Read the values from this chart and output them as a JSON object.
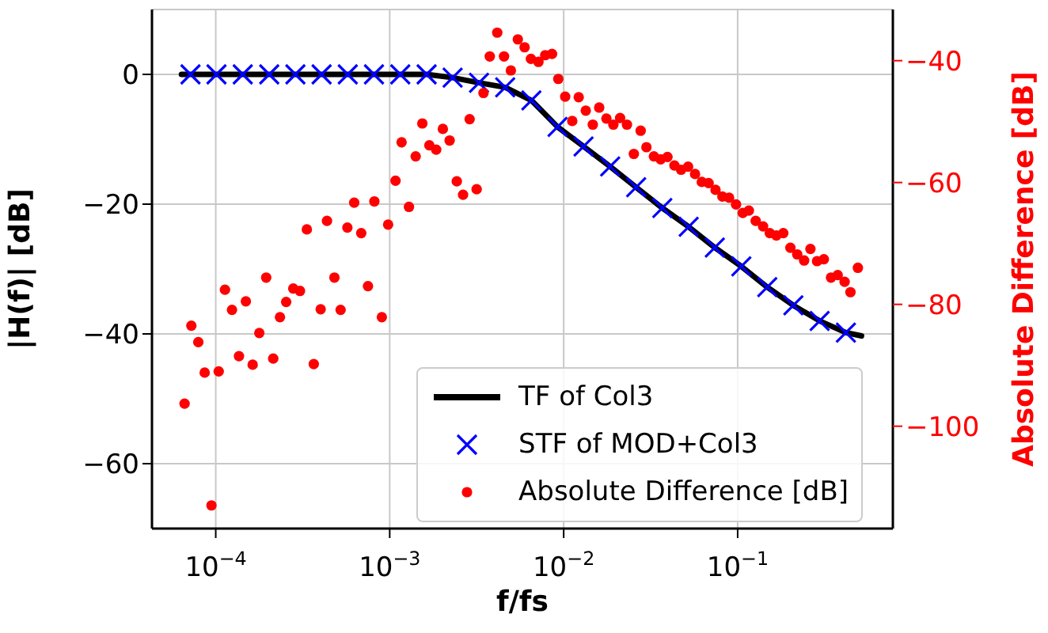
{
  "chart_data": {
    "type": "line",
    "xlabel": "f/fs",
    "ylabel": "|H(f)| [dB]",
    "y2label": "Absolute Difference [dB]",
    "log": "x",
    "grid": true,
    "legend": "bottom right",
    "xlim": [
      4.3e-05,
      0.78
    ],
    "xticks": [
      {
        "value": 0.0001,
        "label": "10$^{−4}$"
      },
      {
        "value": 0.001,
        "label": "10$^{−3}$"
      },
      {
        "value": 0.01,
        "label": "10$^{−2}$"
      },
      {
        "value": 0.1,
        "label": "10$^{−1}$"
      }
    ],
    "ylim": [
      -70,
      10
    ],
    "yticks": [
      -60,
      -40,
      -20,
      0
    ],
    "y2lim": [
      -116.8,
      -31.6
    ],
    "y2ticks": [
      -100,
      -80,
      -60,
      -40
    ],
    "series": [
      {
        "name": "TF of Col3",
        "color": "#000000",
        "marker": "none",
        "line_style": "solid",
        "x": [
          6.35e-05,
          7.16e-05,
          0.000101,
          0.000143,
          0.000203,
          0.000287,
          0.000406,
          0.000574,
          0.000812,
          0.00115,
          0.00163,
          0.0023,
          0.00326,
          0.00461,
          0.00652,
          0.00922,
          0.013,
          0.0185,
          0.0261,
          0.0369,
          0.0523,
          0.0739,
          0.105,
          0.148,
          0.209,
          0.296,
          0.419,
          0.515
        ],
        "values": [
          0,
          0,
          0,
          0,
          0,
          0,
          0,
          0,
          0,
          0,
          0,
          -0.5,
          -1.3,
          -2.0,
          -4.0,
          -8.1,
          -11.1,
          -14.2,
          -17.4,
          -20.6,
          -23.5,
          -26.7,
          -29.6,
          -32.8,
          -35.6,
          -38.0,
          -39.8,
          -40.3
        ]
      },
      {
        "name": "STF of MOD+Col3",
        "type": "scatter",
        "color": "#0000ff",
        "marker": "cross",
        "x": [
          7.16e-05,
          0.000101,
          0.000143,
          0.000203,
          0.000287,
          0.000406,
          0.000574,
          0.000812,
          0.00115,
          0.00163,
          0.0023,
          0.00326,
          0.00461,
          0.00652,
          0.00922,
          0.013,
          0.0185,
          0.0261,
          0.0369,
          0.0523,
          0.0739,
          0.105,
          0.148,
          0.209,
          0.296,
          0.419
        ],
        "values": [
          0,
          0,
          0,
          0,
          0,
          0,
          0,
          0,
          0,
          0,
          -0.5,
          -1.3,
          -2.0,
          -4.0,
          -8.1,
          -11.1,
          -14.2,
          -17.4,
          -20.6,
          -23.5,
          -26.7,
          -29.6,
          -32.8,
          -35.6,
          -38.0,
          -39.8
        ]
      },
      {
        "name": "Absolute Difference [dB]",
        "type": "scatter",
        "axis": "y2",
        "color": "#ff0000",
        "marker": "circle",
        "x": [
          6.62e-05,
          7.24e-05,
          7.94e-05,
          8.64e-05,
          9.45e-05,
          0.000104,
          0.000113,
          0.000124,
          0.000136,
          0.000149,
          0.000163,
          0.000178,
          0.000195,
          0.000214,
          0.000234,
          0.000254,
          0.000279,
          0.000305,
          0.000334,
          0.000366,
          0.000401,
          0.000436,
          0.000481,
          0.000522,
          0.000571,
          0.000625,
          0.000686,
          0.00075,
          0.000816,
          0.000901,
          0.000979,
          0.00108,
          0.00117,
          0.00129,
          0.00141,
          0.00154,
          0.00169,
          0.00185,
          0.00202,
          0.00221,
          0.00243,
          0.00264,
          0.00288,
          0.00316,
          0.00346,
          0.00376,
          0.00415,
          0.00454,
          0.00497,
          0.00545,
          0.00596,
          0.00648,
          0.00716,
          0.00783,
          0.00857,
          0.00931,
          0.0102,
          0.0112,
          0.0122,
          0.0134,
          0.0147,
          0.016,
          0.0176,
          0.0193,
          0.0211,
          0.0231,
          0.0253,
          0.0277,
          0.0299,
          0.033,
          0.0361,
          0.0395,
          0.0433,
          0.0473,
          0.0519,
          0.0569,
          0.0622,
          0.0681,
          0.0746,
          0.0817,
          0.0893,
          0.0979,
          0.107,
          0.116,
          0.127,
          0.14,
          0.153,
          0.167,
          0.183,
          0.201,
          0.22,
          0.241,
          0.262,
          0.286,
          0.313,
          0.344,
          0.376,
          0.412,
          0.445,
          0.491
        ],
        "values": [
          -96.3,
          -83.5,
          -86.2,
          -91.2,
          -113.0,
          -91.0,
          -77.6,
          -80.9,
          -88.5,
          -79.5,
          -89.9,
          -84.7,
          -75.6,
          -88.9,
          -82.1,
          -79.6,
          -77.4,
          -77.8,
          -67.7,
          -89.8,
          -80.8,
          -66.3,
          -75.6,
          -80.9,
          -67.4,
          -63.3,
          -68.3,
          -77.0,
          -63.1,
          -82.1,
          -66.9,
          -59.7,
          -53.4,
          -64.0,
          -55.7,
          -50.3,
          -53.9,
          -54.6,
          -51.2,
          -53.1,
          -59.8,
          -62.0,
          -49.6,
          -61.1,
          -45.3,
          -39.3,
          -35.4,
          -39.3,
          -41.6,
          -36.5,
          -37.8,
          -39.7,
          -40.2,
          -39.1,
          -38.9,
          -43.0,
          -45.9,
          -49.9,
          -46.0,
          -48.2,
          -50.5,
          -47.7,
          -49.5,
          -50.5,
          -49.4,
          -50.5,
          -55.3,
          -51.5,
          -54.2,
          -55.7,
          -56.2,
          -55.8,
          -57.2,
          -57.9,
          -57.4,
          -58.6,
          -59.9,
          -60.1,
          -61.2,
          -62.3,
          -62.5,
          -63.6,
          -65.0,
          -64.6,
          -66.3,
          -67.2,
          -68.3,
          -68.7,
          -68.3,
          -70.7,
          -71.8,
          -72.8,
          -70.9,
          -72.9,
          -72.6,
          -75.6,
          -75.2,
          -76.3,
          -78.0,
          -74.0
        ]
      }
    ]
  }
}
